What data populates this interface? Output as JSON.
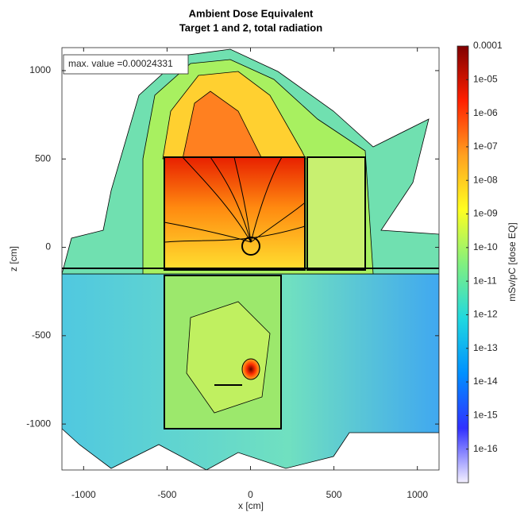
{
  "chart_data": {
    "type": "heatmap",
    "title": "Ambient Dose Equivalent",
    "subtitle": "Target 1 and 2, total radiation",
    "x_label": "x [cm]",
    "y_label": "z [cm]",
    "colorbar_label": "mSv/pC [dose EQ]",
    "annotation": "max. value =0.00024331",
    "xlim": [
      -1130,
      1130
    ],
    "ylim": [
      -1260,
      1130
    ],
    "xticks": [
      -1000,
      -500,
      0,
      500,
      1000
    ],
    "yticks": [
      -1000,
      -500,
      0,
      500,
      1000
    ],
    "clim": [
      1e-17,
      0.0001
    ],
    "color_scale": "log",
    "colormap": [
      "#f4f0ff",
      "#3030ff",
      "#0090ff",
      "#20d8e0",
      "#80f080",
      "#ffff20",
      "#ffa020",
      "#ff2000",
      "#800000"
    ],
    "cticks": [
      0.0001,
      {
        "value": 1e-05,
        "label": "1e-05"
      },
      {
        "value": 1e-06,
        "label": "1e-06"
      },
      {
        "value": 1e-07,
        "label": "1e-07"
      },
      {
        "value": 1e-08,
        "label": "1e-08"
      },
      {
        "value": 1e-09,
        "label": "1e-09"
      },
      {
        "value": 1e-10,
        "label": "1e-10"
      },
      {
        "value": 1e-11,
        "label": "1e-11"
      },
      {
        "value": 1e-12,
        "label": "1e-12"
      },
      {
        "value": 1e-13,
        "label": "1e-13"
      },
      {
        "value": 1e-14,
        "label": "1e-14"
      },
      {
        "value": 1e-15,
        "label": "1e-15"
      },
      {
        "value": 1e-16,
        "label": "1e-16"
      }
    ]
  }
}
